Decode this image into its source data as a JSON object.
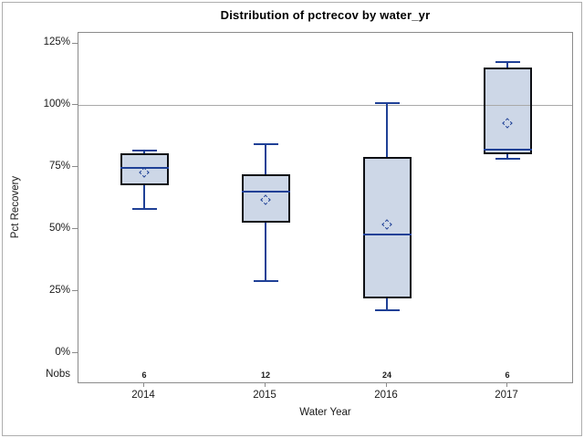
{
  "figure": {
    "title": "Distribution of pctrecov by water_yr",
    "y_axis": {
      "label": "Pct Recovery",
      "tick_labels": [
        "0%",
        "25%",
        "50%",
        "75%",
        "100%",
        "125%"
      ],
      "tick_values": [
        0,
        25,
        50,
        75,
        100,
        125
      ]
    },
    "x_axis": {
      "label": "Water Year",
      "categories": [
        "2014",
        "2015",
        "2016",
        "2017"
      ]
    },
    "nobs_header": "Nobs",
    "colors": {
      "box_fill": "#cdd7e7",
      "box_outline": "#0d0f14",
      "line_navy": "#1f4096",
      "reference_line": "#a9a9a9",
      "axis_gray": "#8b8b8b",
      "text": "#1a1a1a"
    }
  },
  "chart_data": {
    "type": "box",
    "title": "Distribution of pctrecov by water_yr",
    "xlabel": "Water Year",
    "ylabel": "Pct Recovery",
    "units": "percent",
    "ylim": [
      0,
      125
    ],
    "yticks": [
      0,
      25,
      50,
      75,
      100,
      125
    ],
    "reference_line_y": 100,
    "grid": false,
    "categories": [
      "2014",
      "2015",
      "2016",
      "2017"
    ],
    "boxes": [
      {
        "category": "2014",
        "nobs": 6,
        "min": 58.5,
        "q1": 68,
        "median": 75,
        "q3": 81,
        "max": 82,
        "mean": 73
      },
      {
        "category": "2015",
        "nobs": 12,
        "min": 29.5,
        "q1": 53,
        "median": 65.5,
        "q3": 72.5,
        "max": 84.5,
        "mean": 62
      },
      {
        "category": "2016",
        "nobs": 24,
        "min": 17.5,
        "q1": 22.5,
        "median": 48,
        "q3": 79.5,
        "max": 101,
        "mean": 52
      },
      {
        "category": "2017",
        "nobs": 6,
        "min": 78.5,
        "q1": 80.5,
        "median": 82.5,
        "q3": 115.5,
        "max": 117.5,
        "mean": 93
      }
    ]
  }
}
